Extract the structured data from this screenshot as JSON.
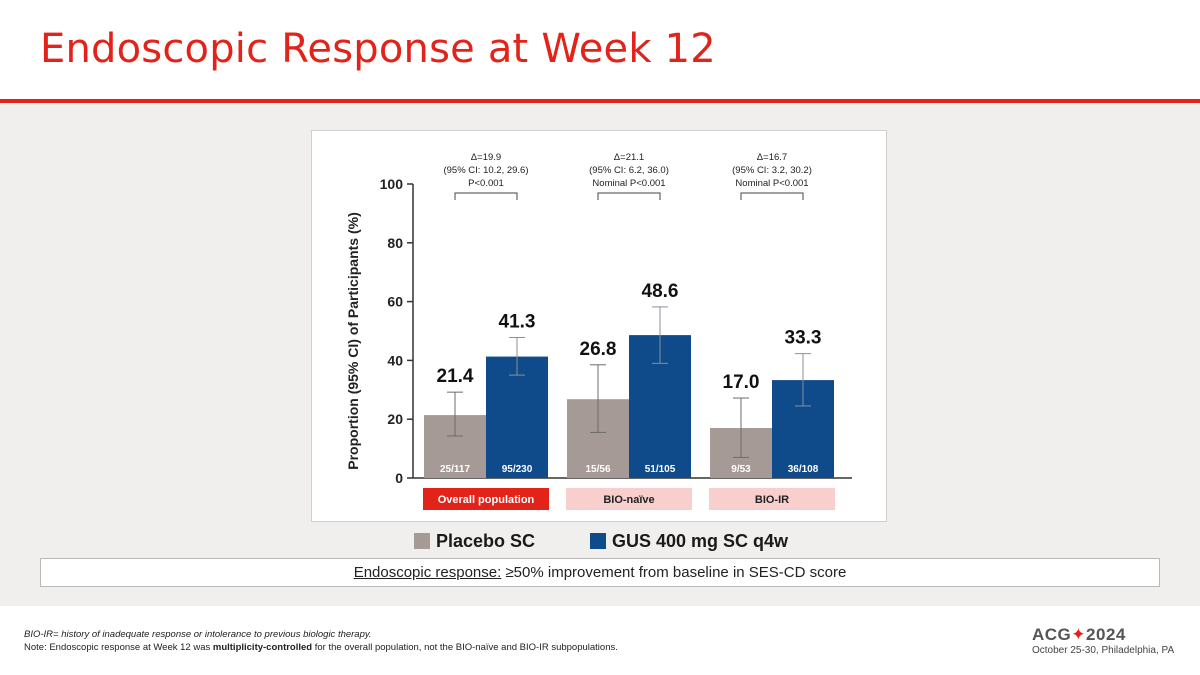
{
  "header": {
    "title": "Endoscopic Response at Week 12"
  },
  "chart_data": {
    "type": "bar",
    "title": "",
    "ylabel": "Proportion (95% CI) of Participants (%)",
    "xlabel": "",
    "ylim": [
      0,
      100
    ],
    "yticks": [
      0,
      20,
      40,
      60,
      80,
      100
    ],
    "series_colors": [
      "#a59a96",
      "#0f4a8a"
    ],
    "groups": [
      {
        "label": "Overall population",
        "highlight": true,
        "bars": [
          {
            "series": "Placebo SC",
            "value": 21.4,
            "value_label": "21.4",
            "ci": [
              14.3,
              29.2
            ],
            "n": "25/117"
          },
          {
            "series": "GUS 400 mg SC q4w",
            "value": 41.3,
            "value_label": "41.3",
            "ci": [
              35.0,
              47.8
            ],
            "n": "95/230"
          }
        ],
        "annotation": [
          "Δ=19.9",
          "(95% CI: 10.2, 29.6)",
          "P<0.001"
        ]
      },
      {
        "label": "BIO-naïve",
        "highlight": false,
        "bars": [
          {
            "series": "Placebo SC",
            "value": 26.8,
            "value_label": "26.8",
            "ci": [
              15.5,
              38.5
            ],
            "n": "15/56"
          },
          {
            "series": "GUS 400 mg SC q4w",
            "value": 48.6,
            "value_label": "48.6",
            "ci": [
              39.0,
              58.2
            ],
            "n": "51/105"
          }
        ],
        "annotation": [
          "Δ=21.1",
          "(95% CI: 6.2, 36.0)",
          "Nominal P<0.001"
        ]
      },
      {
        "label": "BIO-IR",
        "highlight": false,
        "bars": [
          {
            "series": "Placebo SC",
            "value": 17.0,
            "value_label": "17.0",
            "ci": [
              7.0,
              27.2
            ],
            "n": "9/53"
          },
          {
            "series": "GUS 400 mg SC q4w",
            "value": 33.3,
            "value_label": "33.3",
            "ci": [
              24.5,
              42.3
            ],
            "n": "36/108"
          }
        ],
        "annotation": [
          "Δ=16.7",
          "(95% CI: 3.2, 30.2)",
          "Nominal P<0.001"
        ]
      }
    ],
    "legend": [
      {
        "label": "Placebo SC",
        "color": "#a59a96"
      },
      {
        "label": "GUS 400 mg SC q4w",
        "color": "#0f4a8a"
      }
    ]
  },
  "definition": {
    "term": "Endoscopic response:",
    "text": " ≥50% improvement from baseline in SES-CD score"
  },
  "footnotes": {
    "line1": "BIO-IR= history of inadequate response or intolerance to previous biologic therapy.",
    "line2_a": "Note: Endoscopic response at Week 12 was ",
    "line2_b": "multiplicity-controlled",
    "line2_c": " for the overall population, not the BIO-naïve and BIO-IR subpopulations."
  },
  "branding": {
    "logo_left": "ACG",
    "logo_right": "2024",
    "subtitle": "October 25-30, Philadelphia, PA"
  },
  "colors": {
    "accent": "#e2231a",
    "placebo": "#a59a96",
    "gus": "#0f4a8a",
    "band": "#f1efed",
    "group_pill": "#f8cfcd"
  }
}
